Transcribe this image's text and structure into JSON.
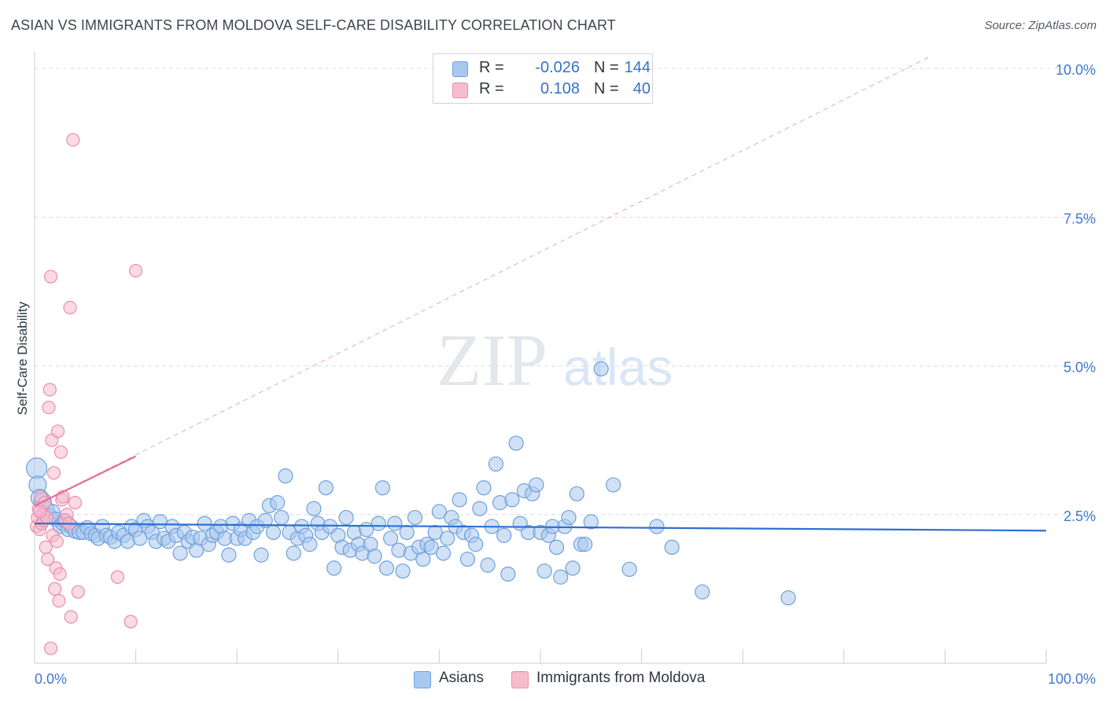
{
  "title": "ASIAN VS IMMIGRANTS FROM MOLDOVA SELF-CARE DISABILITY CORRELATION CHART",
  "source": "Source: ZipAtlas.com",
  "legend_top": {
    "rows": [
      {
        "r_label": "R =",
        "r_value": "-0.026",
        "n_label": "N =",
        "n_value": "144"
      },
      {
        "r_label": "R =",
        "r_value": "0.108",
        "n_label": "N =",
        "n_value": "40"
      }
    ]
  },
  "legend_bottom": {
    "items": [
      {
        "label": "Asians"
      },
      {
        "label": "Immigrants from Moldova"
      }
    ]
  },
  "colors": {
    "asians_fill": "#a9c8ef",
    "asians_stroke": "#6fa0dc",
    "asians_line": "#2e6fd1",
    "moldova_fill": "#f6bccd",
    "moldova_stroke": "#ea8eab",
    "moldova_line": "#e2709a",
    "tick_label": "#3f78cf",
    "grid": "#d8dde3"
  },
  "chart_data": {
    "type": "scatter",
    "title": "ASIAN VS IMMIGRANTS FROM MOLDOVA SELF-CARE DISABILITY CORRELATION CHART",
    "xlabel": "",
    "ylabel": "Self-Care Disability",
    "xlim": [
      0,
      100
    ],
    "ylim": [
      0,
      10.2
    ],
    "x_tick_labels": [
      "0.0%",
      "100.0%"
    ],
    "y_ticks": [
      2.5,
      5.0,
      7.5,
      10.0
    ],
    "y_tick_labels": [
      "2.5%",
      "5.0%",
      "7.5%",
      "10.0%"
    ],
    "grid": "horizontal dashed",
    "legend": "top-center and bottom-center",
    "watermark": "ZIPatlas",
    "series": [
      {
        "name": "Asians",
        "R": -0.026,
        "N": 144,
        "trend": {
          "x": [
            0,
            100
          ],
          "y": [
            2.35,
            2.23
          ]
        },
        "points": [
          [
            0.2,
            3.28
          ],
          [
            0.3,
            3.0
          ],
          [
            0.5,
            2.78
          ],
          [
            0.8,
            2.72
          ],
          [
            1.2,
            2.6
          ],
          [
            1.5,
            2.48
          ],
          [
            1.8,
            2.55
          ],
          [
            2.1,
            2.42
          ],
          [
            2.5,
            2.3
          ],
          [
            2.8,
            2.35
          ],
          [
            3.0,
            2.4
          ],
          [
            3.3,
            2.25
          ],
          [
            3.6,
            2.3
          ],
          [
            4.0,
            2.22
          ],
          [
            4.4,
            2.2
          ],
          [
            4.8,
            2.2
          ],
          [
            5.2,
            2.28
          ],
          [
            5.6,
            2.18
          ],
          [
            6.0,
            2.15
          ],
          [
            6.3,
            2.1
          ],
          [
            6.7,
            2.3
          ],
          [
            7.1,
            2.15
          ],
          [
            7.5,
            2.12
          ],
          [
            7.9,
            2.05
          ],
          [
            8.3,
            2.2
          ],
          [
            8.8,
            2.15
          ],
          [
            9.2,
            2.05
          ],
          [
            9.6,
            2.3
          ],
          [
            10.0,
            2.25
          ],
          [
            10.4,
            2.1
          ],
          [
            10.8,
            2.4
          ],
          [
            11.2,
            2.3
          ],
          [
            11.6,
            2.2
          ],
          [
            12.0,
            2.05
          ],
          [
            12.4,
            2.38
          ],
          [
            12.8,
            2.1
          ],
          [
            13.2,
            2.05
          ],
          [
            13.6,
            2.3
          ],
          [
            14.0,
            2.15
          ],
          [
            14.4,
            1.85
          ],
          [
            14.8,
            2.2
          ],
          [
            15.2,
            2.05
          ],
          [
            15.6,
            2.12
          ],
          [
            16.0,
            1.9
          ],
          [
            16.4,
            2.1
          ],
          [
            16.8,
            2.35
          ],
          [
            17.2,
            2.0
          ],
          [
            17.6,
            2.15
          ],
          [
            18.0,
            2.2
          ],
          [
            18.4,
            2.3
          ],
          [
            18.8,
            2.1
          ],
          [
            19.2,
            1.82
          ],
          [
            19.6,
            2.35
          ],
          [
            20.0,
            2.1
          ],
          [
            20.4,
            2.25
          ],
          [
            20.8,
            2.1
          ],
          [
            21.2,
            2.4
          ],
          [
            21.6,
            2.2
          ],
          [
            22.0,
            2.3
          ],
          [
            22.4,
            1.82
          ],
          [
            22.8,
            2.4
          ],
          [
            23.2,
            2.65
          ],
          [
            23.6,
            2.2
          ],
          [
            24.0,
            2.7
          ],
          [
            24.4,
            2.45
          ],
          [
            24.8,
            3.15
          ],
          [
            25.2,
            2.2
          ],
          [
            25.6,
            1.85
          ],
          [
            26.0,
            2.1
          ],
          [
            26.4,
            2.3
          ],
          [
            26.8,
            2.15
          ],
          [
            27.2,
            2.0
          ],
          [
            27.6,
            2.6
          ],
          [
            28.0,
            2.35
          ],
          [
            28.4,
            2.2
          ],
          [
            28.8,
            2.95
          ],
          [
            29.2,
            2.3
          ],
          [
            29.6,
            1.6
          ],
          [
            30.0,
            2.15
          ],
          [
            30.4,
            1.95
          ],
          [
            30.8,
            2.45
          ],
          [
            31.2,
            1.9
          ],
          [
            31.6,
            2.2
          ],
          [
            32.0,
            2.0
          ],
          [
            32.4,
            1.85
          ],
          [
            32.8,
            2.25
          ],
          [
            33.2,
            2.0
          ],
          [
            33.6,
            1.8
          ],
          [
            34.0,
            2.35
          ],
          [
            34.4,
            2.95
          ],
          [
            34.8,
            1.6
          ],
          [
            35.2,
            2.1
          ],
          [
            35.6,
            2.35
          ],
          [
            36.0,
            1.9
          ],
          [
            36.4,
            1.55
          ],
          [
            36.8,
            2.2
          ],
          [
            37.2,
            1.85
          ],
          [
            37.6,
            2.45
          ],
          [
            38.0,
            1.95
          ],
          [
            38.4,
            1.75
          ],
          [
            38.8,
            2.0
          ],
          [
            39.2,
            1.95
          ],
          [
            39.6,
            2.2
          ],
          [
            40.0,
            2.55
          ],
          [
            40.4,
            1.85
          ],
          [
            40.8,
            2.1
          ],
          [
            41.2,
            2.45
          ],
          [
            41.6,
            2.3
          ],
          [
            42.0,
            2.75
          ],
          [
            42.4,
            2.2
          ],
          [
            42.8,
            1.75
          ],
          [
            43.2,
            2.15
          ],
          [
            43.6,
            2.0
          ],
          [
            44.0,
            2.6
          ],
          [
            44.4,
            2.95
          ],
          [
            44.8,
            1.65
          ],
          [
            45.2,
            2.3
          ],
          [
            45.6,
            3.35
          ],
          [
            46.0,
            2.7
          ],
          [
            46.4,
            2.15
          ],
          [
            46.8,
            1.5
          ],
          [
            47.2,
            2.75
          ],
          [
            47.6,
            3.7
          ],
          [
            48.0,
            2.35
          ],
          [
            48.4,
            2.9
          ],
          [
            48.8,
            2.2
          ],
          [
            49.2,
            2.85
          ],
          [
            49.6,
            3.0
          ],
          [
            50.0,
            2.2
          ],
          [
            50.4,
            1.55
          ],
          [
            50.8,
            2.15
          ],
          [
            51.2,
            2.3
          ],
          [
            51.6,
            1.95
          ],
          [
            52.0,
            1.45
          ],
          [
            52.4,
            2.3
          ],
          [
            52.8,
            2.45
          ],
          [
            53.2,
            1.6
          ],
          [
            53.6,
            2.85
          ],
          [
            54.0,
            2.0
          ],
          [
            54.4,
            2.0
          ],
          [
            55.0,
            2.38
          ],
          [
            56.0,
            4.95
          ],
          [
            57.2,
            3.0
          ],
          [
            58.8,
            1.58
          ],
          [
            66.0,
            1.2
          ],
          [
            74.5,
            1.1
          ],
          [
            61.5,
            2.3
          ],
          [
            63.0,
            1.95
          ]
        ]
      },
      {
        "name": "Immigrants from Moldova",
        "R": 0.108,
        "N": 40,
        "trend": {
          "x": [
            0,
            10
          ],
          "y": [
            2.65,
            3.48
          ]
        },
        "trend_extended": {
          "x": [
            0,
            88.5
          ],
          "y": [
            2.65,
            10.2
          ]
        },
        "points": [
          [
            0.2,
            2.3
          ],
          [
            0.3,
            2.45
          ],
          [
            0.4,
            2.6
          ],
          [
            0.5,
            2.25
          ],
          [
            0.6,
            2.8
          ],
          [
            0.7,
            2.35
          ],
          [
            0.8,
            2.5
          ],
          [
            0.9,
            2.4
          ],
          [
            1.0,
            2.7
          ],
          [
            1.1,
            1.95
          ],
          [
            1.2,
            2.45
          ],
          [
            1.3,
            1.75
          ],
          [
            1.4,
            4.3
          ],
          [
            1.5,
            4.6
          ],
          [
            1.6,
            6.5
          ],
          [
            1.7,
            3.75
          ],
          [
            1.8,
            2.15
          ],
          [
            1.9,
            3.2
          ],
          [
            2.0,
            1.25
          ],
          [
            2.1,
            1.6
          ],
          [
            2.2,
            2.05
          ],
          [
            2.3,
            3.9
          ],
          [
            2.4,
            1.05
          ],
          [
            2.5,
            1.5
          ],
          [
            2.6,
            3.55
          ],
          [
            2.7,
            2.75
          ],
          [
            2.8,
            2.8
          ],
          [
            3.0,
            2.4
          ],
          [
            3.2,
            2.5
          ],
          [
            3.4,
            2.35
          ],
          [
            3.5,
            5.98
          ],
          [
            3.6,
            0.78
          ],
          [
            3.8,
            8.8
          ],
          [
            4.0,
            2.7
          ],
          [
            4.3,
            1.2
          ],
          [
            1.6,
            0.25
          ],
          [
            8.2,
            1.45
          ],
          [
            9.5,
            0.7
          ],
          [
            10.0,
            6.6
          ],
          [
            0.5,
            2.55
          ]
        ]
      }
    ]
  }
}
